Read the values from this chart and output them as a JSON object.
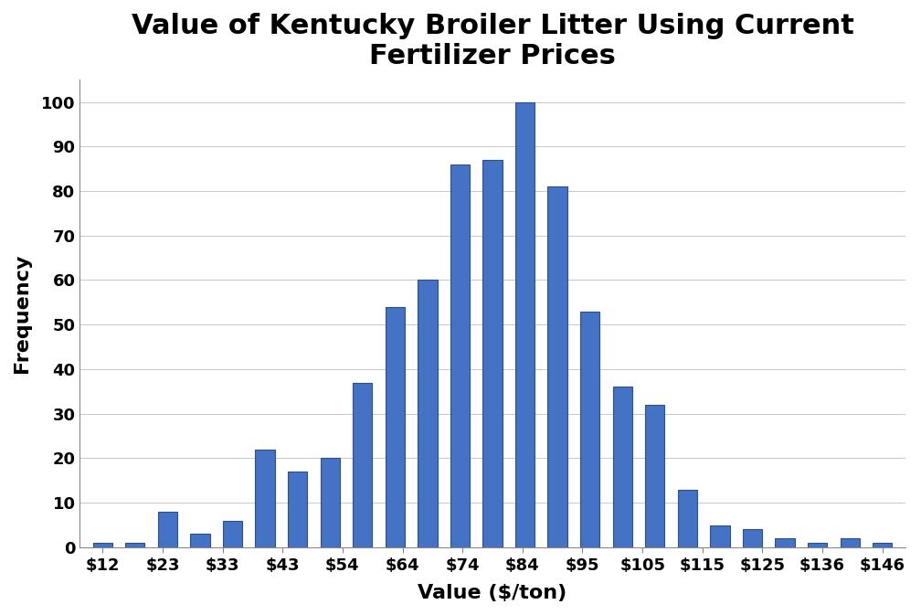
{
  "title": "Value of Kentucky Broiler Litter Using Current\nFertilizer Prices",
  "xlabel": "Value ($/ton)",
  "ylabel": "Frequency",
  "tick_labels": [
    "$12",
    "$23",
    "$33",
    "$43",
    "$54",
    "$64",
    "$74",
    "$84",
    "$95",
    "$105",
    "$115",
    "$125",
    "$136",
    "$146"
  ],
  "bar_heights": [
    1,
    1,
    8,
    3,
    6,
    22,
    17,
    20,
    37,
    54,
    60,
    86,
    87,
    100,
    81,
    53,
    36,
    32,
    13,
    5,
    4,
    2,
    1,
    2,
    1
  ],
  "ylim": [
    0,
    105
  ],
  "yticks": [
    0,
    10,
    20,
    30,
    40,
    50,
    60,
    70,
    80,
    90,
    100
  ],
  "bar_color": "#4472C4",
  "bar_edge_color": "#2E4F8A",
  "title_fontsize": 22,
  "axis_label_fontsize": 16,
  "tick_fontsize": 13,
  "background_color": "#ffffff"
}
